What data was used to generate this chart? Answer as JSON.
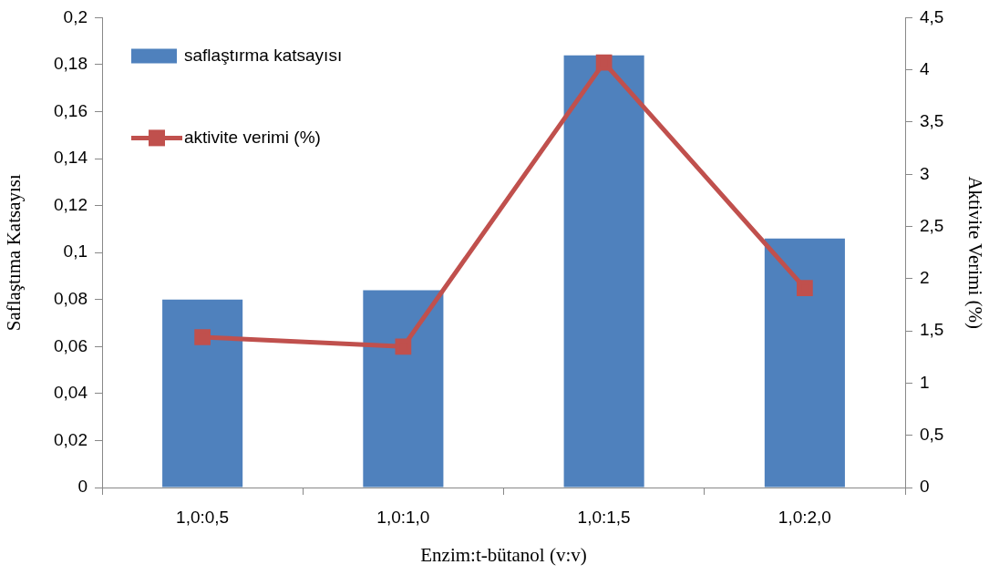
{
  "chart_data": {
    "type": "bar",
    "xlabel": "Enzim:t-bütanol (v:v)",
    "ylabel": "Saflaştıma Katsayısı",
    "y2label": "Aktivite Verimi (%)",
    "categories": [
      "1,0:0,5",
      "1,0:1,0",
      "1,0:1,5",
      "1,0:2,0"
    ],
    "series": [
      {
        "name": "saflaştırma katsayısı",
        "color": "#4f81bd",
        "values": [
          0.08,
          0.084,
          0.184,
          0.106
        ]
      },
      {
        "name": "aktivite verimi (%)",
        "type": "line",
        "axis": "y2",
        "color": "#c0504d",
        "marker": "square",
        "values": [
          1.44,
          1.35,
          4.07,
          1.91
        ]
      }
    ],
    "ylim": [
      0,
      0.2
    ],
    "yticks": [
      0,
      {
        "value": 0.02,
        "label": "0,02"
      },
      {
        "value": 0.04,
        "label": "0,04"
      },
      {
        "value": 0.06,
        "label": "0,06"
      },
      {
        "value": 0.08,
        "label": "0,08"
      },
      {
        "value": 0.1,
        "label": "0,1"
      },
      {
        "value": 0.12,
        "label": "0,12"
      },
      {
        "value": 0.14,
        "label": "0,14"
      },
      {
        "value": 0.16,
        "label": "0,16"
      },
      {
        "value": 0.18,
        "label": "0,18"
      },
      {
        "value": 0.2,
        "label": "0,2"
      }
    ],
    "y2lim": [
      0,
      4.5
    ],
    "y2ticks": [
      0,
      {
        "value": 0.5,
        "label": "0,5"
      },
      1,
      {
        "value": 1.5,
        "label": "1,5"
      },
      2,
      {
        "value": 2.5,
        "label": "2,5"
      },
      3,
      {
        "value": 3.5,
        "label": "3,5"
      },
      4,
      {
        "value": 4.5,
        "label": "4,5"
      }
    ],
    "grid": false,
    "legend": "top left"
  }
}
